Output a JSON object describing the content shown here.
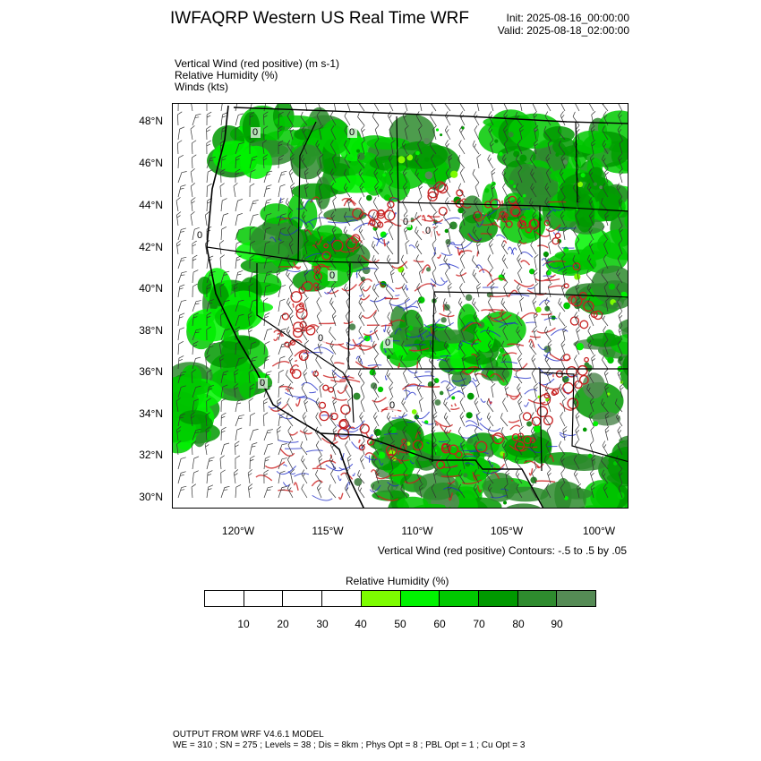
{
  "header": {
    "title": "IWFAQRP Western US Real Time WRF",
    "init": "Init: 2025-08-16_00:00:00",
    "valid": "Valid: 2025-08-18_02:00:00"
  },
  "fields": [
    "Vertical Wind (red positive)   (m s-1)",
    "Relative Humidity   (%)",
    "Winds   (kts)"
  ],
  "map": {
    "lat_labels": [
      "48°N",
      "46°N",
      "44°N",
      "42°N",
      "40°N",
      "38°N",
      "36°N",
      "34°N",
      "32°N",
      "30°N"
    ],
    "lon_labels": [
      "120°W",
      "115°W",
      "110°W",
      "105°W",
      "100°W"
    ],
    "contour_value_labels": [
      "0",
      "0",
      "0",
      "0",
      "0",
      "0",
      "0",
      "0",
      "0",
      "0"
    ],
    "contour_info": "Vertical Wind (red positive) Contours: -.5 to .5 by .05"
  },
  "colorbar": {
    "title": "Relative Humidity   (%)",
    "ticks": [
      "10",
      "20",
      "30",
      "40",
      "50",
      "60",
      "70",
      "80",
      "90"
    ],
    "colors": [
      "#ffffff",
      "#ffffff",
      "#ffffff",
      "#ffffff",
      "#7dfc00",
      "#00f300",
      "#00c900",
      "#009900",
      "#2e8b2e",
      "#558b55"
    ]
  },
  "footer": {
    "line1": "OUTPUT FROM WRF V4.6.1 MODEL",
    "line2": "WE = 310 ; SN = 275 ; Levels = 38 ; Dis = 8km ; Phys Opt = 8 ; PBL Opt = 1 ; Cu Opt = 3"
  }
}
